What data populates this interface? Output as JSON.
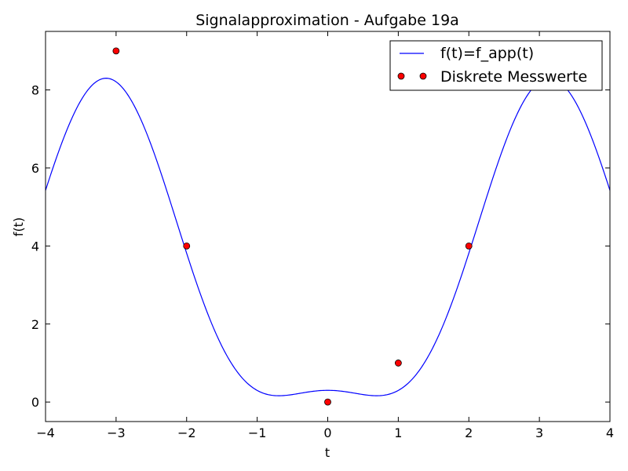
{
  "chart_data": {
    "type": "line",
    "title": "Signalapproximation - Aufgabe 19a",
    "xlabel": "t",
    "ylabel": "f(t)",
    "xlim": [
      -4,
      4
    ],
    "ylim": [
      -0.5,
      9.5
    ],
    "xticks": [
      -4,
      -3,
      -2,
      -1,
      0,
      1,
      2,
      3,
      4
    ],
    "xtick_labels": [
      "−4",
      "−3",
      "−2",
      "−1",
      "0",
      "1",
      "2",
      "3",
      "4"
    ],
    "yticks": [
      0,
      2,
      4,
      6,
      8
    ],
    "ytick_labels": [
      "0",
      "2",
      "4",
      "6",
      "8"
    ],
    "grid": false,
    "legend_position": "top-right",
    "series": [
      {
        "name": "f(t)=f_app(t)",
        "kind": "line",
        "color": "#0000ff",
        "function": "trig_interpolation",
        "a0": 3,
        "a1": -4,
        "a2": 1.3,
        "period": 6.283185307
      },
      {
        "name": "Diskrete Messwerte",
        "kind": "markers",
        "color": "#ff0000",
        "x": [
          -3,
          -2,
          0,
          1,
          2
        ],
        "y": [
          9,
          4,
          0,
          1,
          4
        ]
      }
    ]
  }
}
